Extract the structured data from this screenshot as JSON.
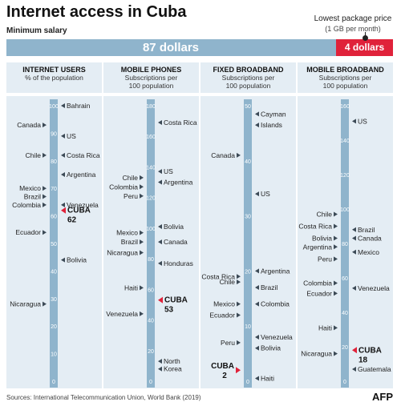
{
  "header": {
    "title": "Internet access in Cuba",
    "subtitle": "Minimum salary",
    "price_title": "Lowest package price",
    "price_sub": "(1 GB per month)",
    "salary_label": "87 dollars",
    "package_label": "4 dollars"
  },
  "footer": {
    "source": "Sources: International Telecommunication Union, World Bank (2019)",
    "logo": "AFP"
  },
  "colors": {
    "bar": "#8fb4cc",
    "panel": "#e4edf4",
    "highlight": "#e0223a",
    "label_triangle": "#3c4a56"
  },
  "chart_data": [
    {
      "type": "scale",
      "title": "INTERNET USERS",
      "subtitle": [
        "% of the population"
      ],
      "ylim": [
        0,
        100
      ],
      "ticks": [
        0,
        10,
        20,
        30,
        40,
        50,
        60,
        70,
        80,
        90,
        100
      ],
      "left": [
        {
          "label": "Canada",
          "value": 93
        },
        {
          "label": "Chile",
          "value": 82
        },
        {
          "label": "Mexico",
          "value": 70
        },
        {
          "label": "Brazil",
          "value": 67
        },
        {
          "label": "Colombia",
          "value": 64
        },
        {
          "label": "Ecuador",
          "value": 54
        },
        {
          "label": "Nicaragua",
          "value": 28
        }
      ],
      "right": [
        {
          "label": "Bahrain",
          "value": 100
        },
        {
          "label": "US",
          "value": 89
        },
        {
          "label": "Costa Rica",
          "value": 82
        },
        {
          "label": "Argentina",
          "value": 75
        },
        {
          "label": "Venezuela",
          "value": 64
        },
        {
          "label": "Bolivia",
          "value": 44
        }
      ],
      "cuba": {
        "label": "CUBA",
        "value": 62
      }
    },
    {
      "type": "scale",
      "title": "MOBILE PHONES",
      "subtitle": [
        "Subscriptions per",
        "100 population"
      ],
      "ylim": [
        0,
        180
      ],
      "ticks": [
        0,
        20,
        40,
        60,
        80,
        100,
        120,
        140,
        160,
        180
      ],
      "left": [
        {
          "label": "Chile",
          "value": 133
        },
        {
          "label": "Colombia",
          "value": 127
        },
        {
          "label": "Peru",
          "value": 121
        },
        {
          "label": "Mexico",
          "value": 97
        },
        {
          "label": "Brazil",
          "value": 91
        },
        {
          "label": "Nicaragua",
          "value": 84
        },
        {
          "label": "Haiti",
          "value": 61
        },
        {
          "label": "Venezuela",
          "value": 44
        }
      ],
      "right": [
        {
          "label": "Costa Rica",
          "value": 169
        },
        {
          "label": "US",
          "value": 137
        },
        {
          "label": "Argentina",
          "value": 130
        },
        {
          "label": "Bolivia",
          "value": 101
        },
        {
          "label": "Canada",
          "value": 91
        },
        {
          "label": "Honduras",
          "value": 77
        },
        {
          "label": "North",
          "value": 13
        },
        {
          "label": "Korea",
          "value": 8
        }
      ],
      "cuba": {
        "label": "CUBA",
        "value": 53
      }
    },
    {
      "type": "scale",
      "title": "FIXED BROADBAND",
      "subtitle": [
        "Subscriptions per",
        "100 population"
      ],
      "ylim": [
        0,
        50
      ],
      "ticks": [
        0,
        10,
        20,
        30,
        40,
        50
      ],
      "left": [
        {
          "label": "Canada",
          "value": 41
        },
        {
          "label": "Costa Rica",
          "value": 19
        },
        {
          "label": "Chile",
          "value": 18
        },
        {
          "label": "Mexico",
          "value": 14
        },
        {
          "label": "Ecuador",
          "value": 12
        },
        {
          "label": "Peru",
          "value": 7
        }
      ],
      "right": [
        {
          "label": "Cayman",
          "value": 48.5
        },
        {
          "label": "Islands",
          "value": 46.5
        },
        {
          "label": "US",
          "value": 34
        },
        {
          "label": "Argentina",
          "value": 20
        },
        {
          "label": "Brazil",
          "value": 17
        },
        {
          "label": "Colombia",
          "value": 14
        },
        {
          "label": "Venezuela",
          "value": 8
        },
        {
          "label": "Bolivia",
          "value": 6
        },
        {
          "label": "Haiti",
          "value": 0.5
        }
      ],
      "cuba": {
        "label": "CUBA",
        "value": 2
      }
    },
    {
      "type": "scale",
      "title": "MOBILE BROADBAND",
      "subtitle": [
        "Subscriptions per",
        "100 population"
      ],
      "ylim": [
        0,
        160
      ],
      "ticks": [
        0,
        20,
        40,
        60,
        80,
        100,
        120,
        140,
        160
      ],
      "left": [
        {
          "label": "Chile",
          "value": 97
        },
        {
          "label": "Costa Rica",
          "value": 90
        },
        {
          "label": "Bolivia",
          "value": 83
        },
        {
          "label": "Argentina",
          "value": 78
        },
        {
          "label": "Peru",
          "value": 71
        },
        {
          "label": "Colombia",
          "value": 57
        },
        {
          "label": "Ecuador",
          "value": 51
        },
        {
          "label": "Haiti",
          "value": 31
        },
        {
          "label": "Nicaragua",
          "value": 16
        }
      ],
      "right": [
        {
          "label": "US",
          "value": 151
        },
        {
          "label": "Brazil",
          "value": 88
        },
        {
          "label": "Canada",
          "value": 83
        },
        {
          "label": "Mexico",
          "value": 75
        },
        {
          "label": "Venezuela",
          "value": 54
        },
        {
          "label": "Guatemala",
          "value": 7
        }
      ],
      "cuba": {
        "label": "CUBA",
        "value": 18
      }
    }
  ]
}
